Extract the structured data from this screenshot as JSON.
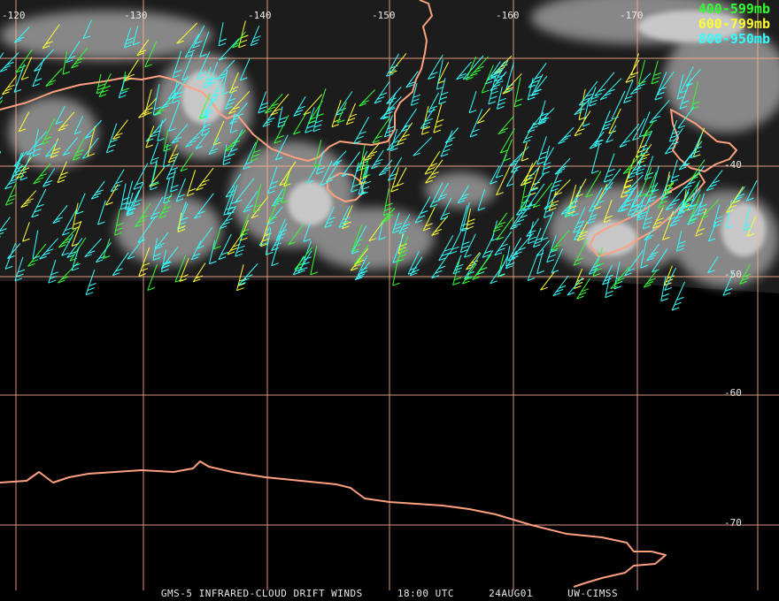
{
  "longitude_labels": [
    "-120",
    "-130",
    "-140",
    "-150",
    "-160",
    "-170"
  ],
  "latitude_labels": [
    "-40",
    "-50",
    "-60",
    "-70"
  ],
  "legend": [
    {
      "label": "400-599mb",
      "color": "#33ff33"
    },
    {
      "label": "600-799mb",
      "color": "#ffff33"
    },
    {
      "label": "800-950mb",
      "color": "#33ffff"
    }
  ],
  "caption": {
    "product": "GMS-5 INFRARED-CLOUD DRIFT WINDS",
    "time": "18:00 UTC",
    "date": "24AUG01",
    "source": "UW-CIMSS"
  },
  "colors": {
    "background": "#000000",
    "grid": "#ffb090",
    "coastline": "#ffa080"
  }
}
